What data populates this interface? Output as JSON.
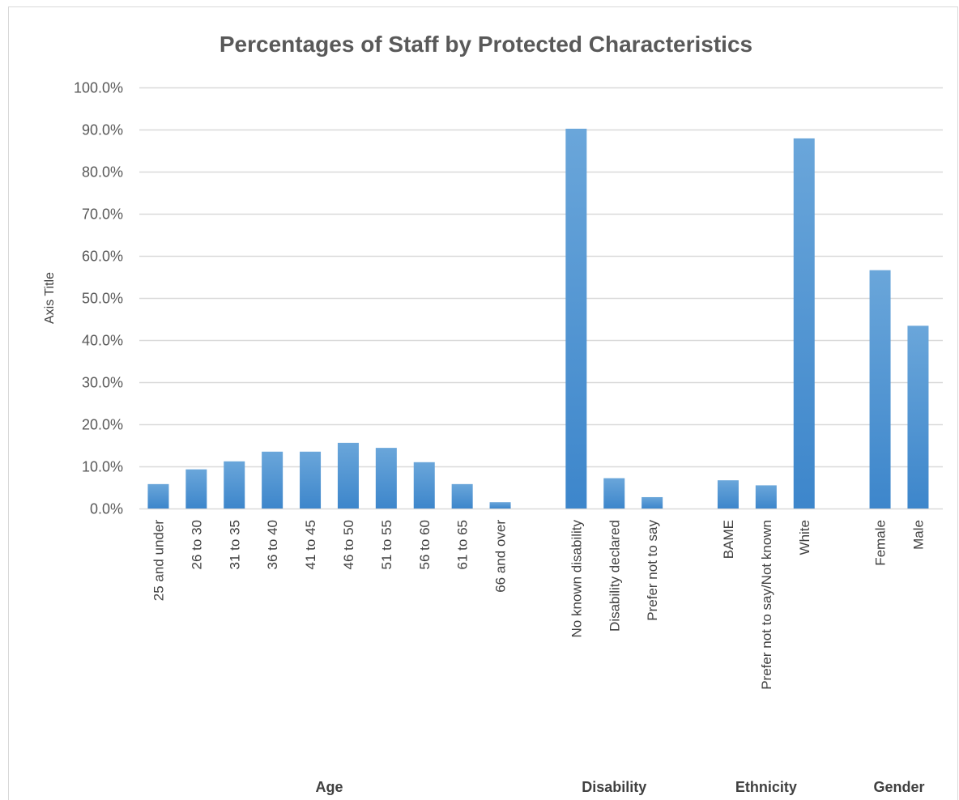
{
  "chart_data": {
    "type": "bar",
    "title": "Percentages of Staff by Protected Characteristics",
    "ylabel": "Axis Title",
    "ylim": [
      0,
      100
    ],
    "ytick_step": 10,
    "ytick_labels": [
      "0.0%",
      "10.0%",
      "20.0%",
      "30.0%",
      "40.0%",
      "50.0%",
      "60.0%",
      "70.0%",
      "80.0%",
      "90.0%",
      "100.0%"
    ],
    "grid": true,
    "legend": "none",
    "bar_color": "#5b9bd5",
    "bar_color_top": "#6aa6da",
    "bar_color_bottom": "#3d86cb",
    "groups": [
      {
        "name": "Age",
        "categories": [
          "25 and under",
          "26 to 30",
          "31 to 35",
          "36 to 40",
          "41 to 45",
          "46 to 50",
          "51 to 55",
          "56 to 60",
          "61 to 65",
          "66 and over"
        ],
        "values": [
          5.8,
          9.3,
          11.2,
          13.5,
          13.5,
          15.6,
          14.4,
          11.0,
          5.8,
          1.5
        ]
      },
      {
        "name": "Disability",
        "categories": [
          "No known disability",
          "Disability declared",
          "Prefer not to say"
        ],
        "values": [
          90.2,
          7.2,
          2.7
        ]
      },
      {
        "name": "Ethnicity",
        "categories": [
          "BAME",
          "Prefer not to say/Not known",
          "White"
        ],
        "values": [
          6.7,
          5.5,
          87.9
        ]
      },
      {
        "name": "Gender",
        "categories": [
          "Female",
          "Male"
        ],
        "values": [
          56.6,
          43.4
        ]
      }
    ]
  }
}
